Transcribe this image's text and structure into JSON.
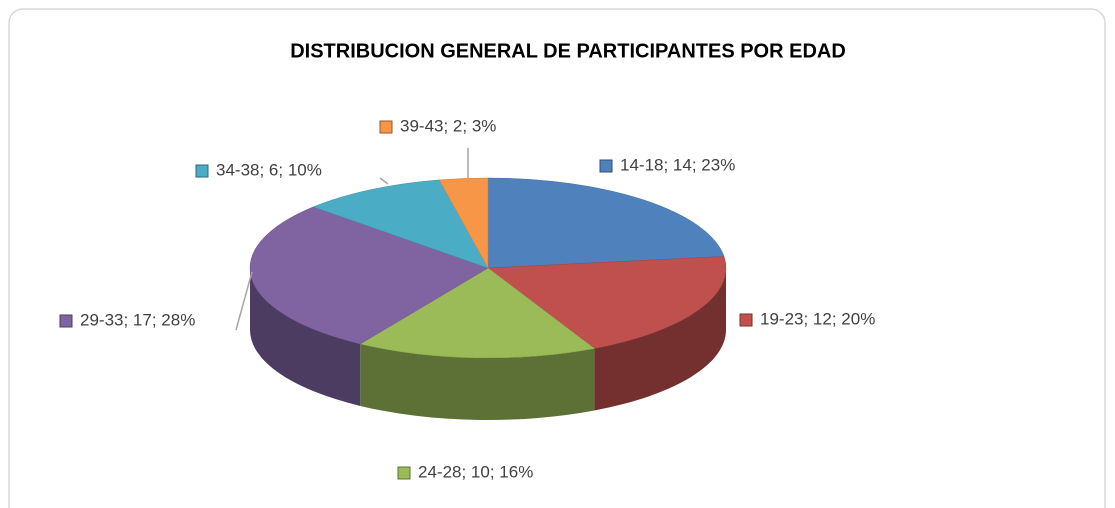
{
  "chart_data": {
    "type": "pie3d",
    "title": "DISTRIBUCION GENERAL DE PARTICIPANTES POR EDAD",
    "values": [
      14,
      12,
      10,
      17,
      6,
      2
    ],
    "value_labels": [
      "14-18; 14; 23%",
      "19-23; 12; 20%",
      "24-28; 10; 16%",
      "29-33; 17; 28%",
      "34-38; 6; 10%",
      "39-43; 2; 3%"
    ],
    "colors": [
      "#4f81bd",
      "#c0504d",
      "#9bbb59",
      "#8064a2",
      "#4bacc6",
      "#f79646"
    ]
  }
}
